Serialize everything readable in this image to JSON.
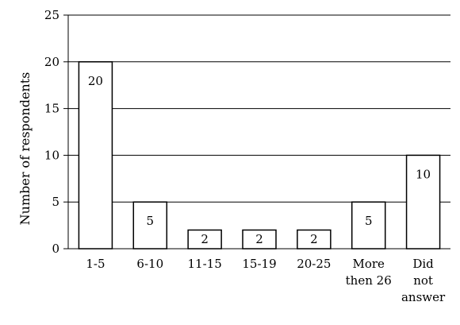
{
  "chart_data": {
    "type": "bar",
    "title": "",
    "xlabel": "",
    "ylabel": "Number of respondents",
    "categories": [
      [
        "1-5"
      ],
      [
        "6-10"
      ],
      [
        "11-15"
      ],
      [
        "15-19"
      ],
      [
        "20-25"
      ],
      [
        "More",
        "then 26"
      ],
      [
        "Did",
        "not",
        "answer"
      ]
    ],
    "values": [
      20,
      5,
      2,
      2,
      2,
      5,
      10
    ],
    "data_labels": [
      "20",
      "5",
      "2",
      "2",
      "2",
      "5",
      "10"
    ],
    "ylim": [
      0,
      25
    ],
    "yticks": [
      0,
      5,
      10,
      15,
      20,
      25
    ],
    "grid": true,
    "legend": "none",
    "colors": {
      "bar_fill": "#ffffff",
      "bar_stroke": "#000000",
      "grid": "#000000",
      "axis": "#000000"
    }
  }
}
